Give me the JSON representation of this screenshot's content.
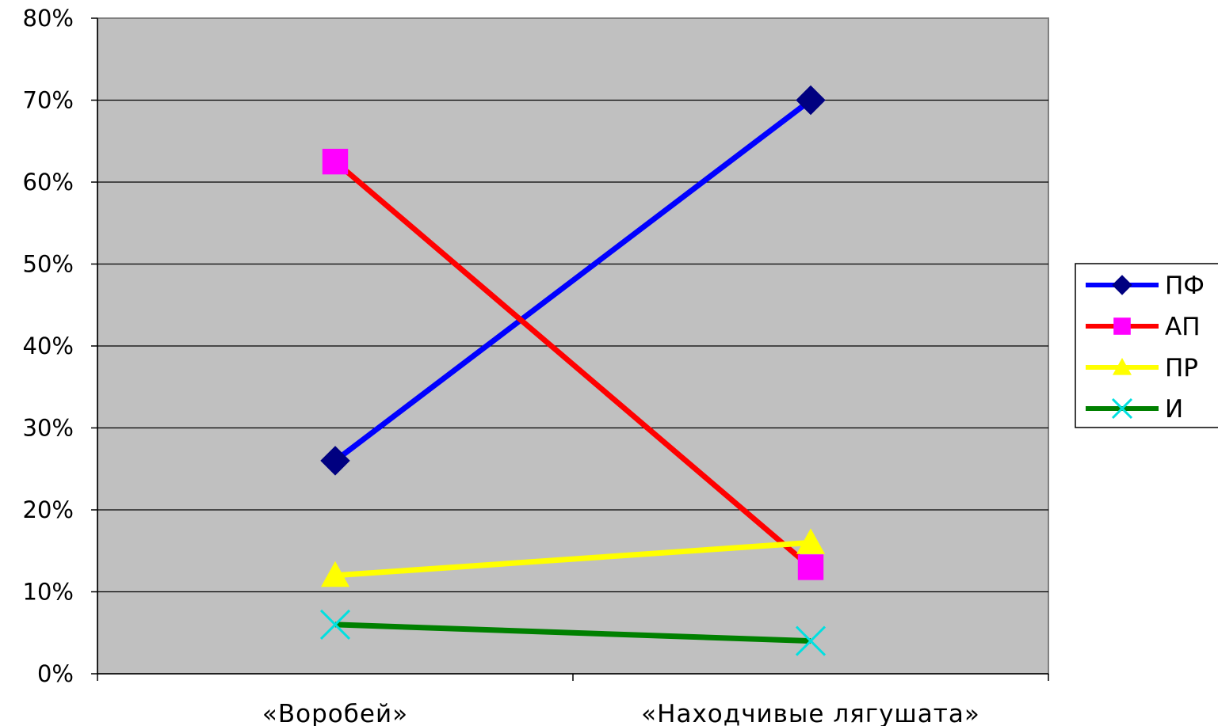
{
  "chart_data": {
    "type": "line",
    "title": "",
    "xlabel": "",
    "ylabel": "",
    "categories": [
      "«Воробей»",
      "«Находчивые лягушата»"
    ],
    "y_ticks": [
      "0%",
      "10%",
      "20%",
      "30%",
      "40%",
      "50%",
      "60%",
      "70%",
      "80%"
    ],
    "ylim": [
      0,
      80
    ],
    "grid": true,
    "legend_position": "right",
    "plot_background": "#c0c0c0",
    "series": [
      {
        "name": "ПФ",
        "values": [
          26,
          70
        ],
        "line_color": "#0000ff",
        "marker": "diamond",
        "marker_color": "#000080"
      },
      {
        "name": "АП",
        "values": [
          62.5,
          13
        ],
        "line_color": "#ff0000",
        "marker": "square",
        "marker_color": "#ff00ff"
      },
      {
        "name": "ПР",
        "values": [
          12,
          16
        ],
        "line_color": "#ffff00",
        "marker": "triangle",
        "marker_color": "#ffff00"
      },
      {
        "name": "И",
        "values": [
          6,
          4
        ],
        "line_color": "#008000",
        "marker": "x",
        "marker_color": "#00e0e0"
      }
    ]
  }
}
